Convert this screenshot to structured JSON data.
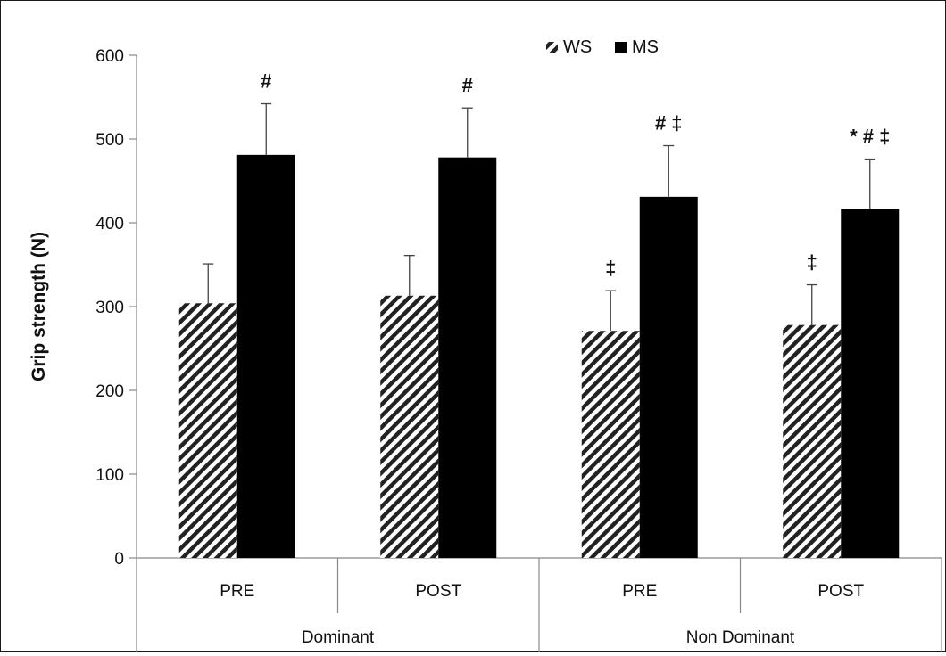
{
  "chart_data": {
    "type": "bar",
    "title": "",
    "ylabel": "Grip strength (N)",
    "xlabel": "",
    "ylim": [
      0,
      600
    ],
    "yticks": [
      0,
      100,
      200,
      300,
      400,
      500,
      600
    ],
    "groups": [
      {
        "label": "Dominant",
        "categories": [
          "PRE",
          "POST"
        ]
      },
      {
        "label": "Non Dominant",
        "categories": [
          "PRE",
          "POST"
        ]
      }
    ],
    "categories": [
      "PRE",
      "POST",
      "PRE",
      "POST"
    ],
    "legend": {
      "position": "top-right"
    },
    "series": [
      {
        "name": "WS",
        "pattern": "hatched",
        "color": "#222222",
        "values": [
          304,
          313,
          271,
          278
        ],
        "errors": [
          47,
          48,
          48,
          48
        ],
        "annotations": [
          "",
          "",
          "‡",
          "‡"
        ]
      },
      {
        "name": "MS",
        "pattern": "solid",
        "color": "#000000",
        "values": [
          481,
          478,
          431,
          417
        ],
        "errors": [
          61,
          59,
          61,
          59
        ],
        "annotations": [
          "#",
          "#",
          "# ‡",
          "* # ‡"
        ]
      }
    ],
    "grid": false
  }
}
